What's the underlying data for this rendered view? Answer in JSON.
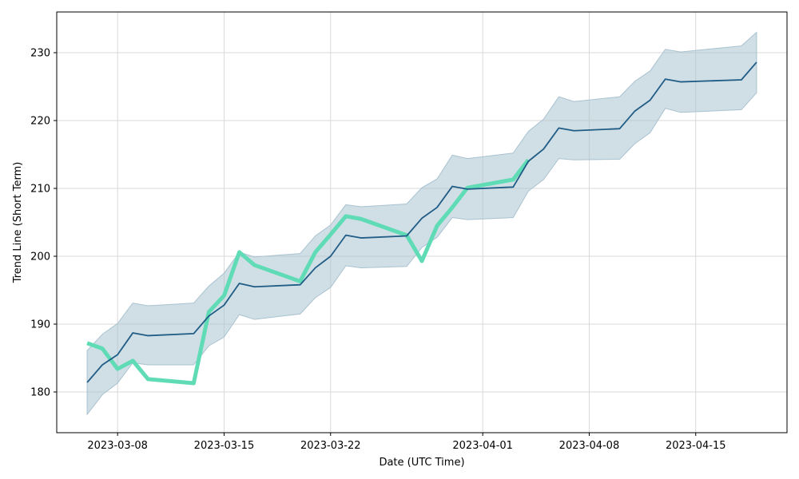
{
  "chart_data": {
    "type": "line",
    "title": "",
    "xlabel": "Date (UTC Time)",
    "ylabel": "Trend Line (Short Term)",
    "xlim": [
      "2023-03-04",
      "2023-04-21"
    ],
    "ylim": [
      174,
      236
    ],
    "grid": true,
    "x_ticks": [
      "2023-03-08",
      "2023-03-15",
      "2023-03-22",
      "2023-04-01",
      "2023-04-08",
      "2023-04-15"
    ],
    "y_ticks": [
      180,
      190,
      200,
      210,
      220,
      230
    ],
    "colors": {
      "trend": "#1f5c86",
      "band": "#a9c2d0",
      "actual": "#5fdcb5",
      "grid": "#d9d9d9"
    },
    "series": [
      {
        "role": "trend",
        "x": [
          "2023-03-06",
          "2023-03-07",
          "2023-03-08",
          "2023-03-09",
          "2023-03-10",
          "2023-03-13",
          "2023-03-14",
          "2023-03-15",
          "2023-03-16",
          "2023-03-17",
          "2023-03-20",
          "2023-03-21",
          "2023-03-22",
          "2023-03-23",
          "2023-03-24",
          "2023-03-27",
          "2023-03-28",
          "2023-03-29",
          "2023-03-30",
          "2023-03-31",
          "2023-04-03",
          "2023-04-04",
          "2023-04-05",
          "2023-04-06",
          "2023-04-07",
          "2023-04-10",
          "2023-04-11",
          "2023-04-12",
          "2023-04-13",
          "2023-04-14",
          "2023-04-18",
          "2023-04-19"
        ],
        "values": [
          181.4,
          184.0,
          185.5,
          188.7,
          188.3,
          188.6,
          191.2,
          192.8,
          196.0,
          195.5,
          195.8,
          198.3,
          200.0,
          203.1,
          202.7,
          203.0,
          205.6,
          207.2,
          210.3,
          209.9,
          210.2,
          214.0,
          215.8,
          218.9,
          218.5,
          218.8,
          221.4,
          223.0,
          226.1,
          225.7,
          226.0,
          228.6
        ]
      },
      {
        "role": "band",
        "x": [
          "2023-03-06",
          "2023-03-07",
          "2023-03-08",
          "2023-03-09",
          "2023-03-10",
          "2023-03-13",
          "2023-03-14",
          "2023-03-15",
          "2023-03-16",
          "2023-03-17",
          "2023-03-20",
          "2023-03-21",
          "2023-03-22",
          "2023-03-23",
          "2023-03-24",
          "2023-03-27",
          "2023-03-28",
          "2023-03-29",
          "2023-03-30",
          "2023-03-31",
          "2023-04-03",
          "2023-04-04",
          "2023-04-05",
          "2023-04-06",
          "2023-04-07",
          "2023-04-10",
          "2023-04-11",
          "2023-04-12",
          "2023-04-13",
          "2023-04-14",
          "2023-04-18",
          "2023-04-19"
        ],
        "lower": [
          176.7,
          179.6,
          181.3,
          184.3,
          184.0,
          184.0,
          186.8,
          188.1,
          191.4,
          190.7,
          191.5,
          193.9,
          195.4,
          198.6,
          198.3,
          198.5,
          201.3,
          202.8,
          205.7,
          205.4,
          205.7,
          209.6,
          211.3,
          214.4,
          214.2,
          214.3,
          216.6,
          218.2,
          221.8,
          221.2,
          221.6,
          224.1
        ],
        "upper": [
          186.1,
          188.5,
          190.1,
          193.1,
          192.7,
          193.1,
          195.6,
          197.5,
          200.6,
          199.9,
          200.4,
          203.0,
          204.6,
          207.6,
          207.3,
          207.7,
          210.1,
          211.4,
          214.9,
          214.4,
          215.2,
          218.4,
          220.2,
          223.5,
          222.8,
          223.5,
          225.8,
          227.3,
          230.5,
          230.1,
          231.0,
          233.0
        ]
      },
      {
        "role": "actual",
        "x": [
          "2023-03-06",
          "2023-03-07",
          "2023-03-08",
          "2023-03-09",
          "2023-03-10",
          "2023-03-13",
          "2023-03-14",
          "2023-03-15",
          "2023-03-16",
          "2023-03-17",
          "2023-03-20",
          "2023-03-21",
          "2023-03-22",
          "2023-03-23",
          "2023-03-24",
          "2023-03-27",
          "2023-03-28",
          "2023-03-29",
          "2023-03-30",
          "2023-03-31",
          "2023-04-03",
          "2023-04-04"
        ],
        "values": [
          187.2,
          186.4,
          183.4,
          184.6,
          181.9,
          181.3,
          191.8,
          194.2,
          200.6,
          198.7,
          196.3,
          200.6,
          203.2,
          205.9,
          205.5,
          203.1,
          199.3,
          204.5,
          207.2,
          210.1,
          211.3,
          214.2
        ]
      }
    ]
  }
}
